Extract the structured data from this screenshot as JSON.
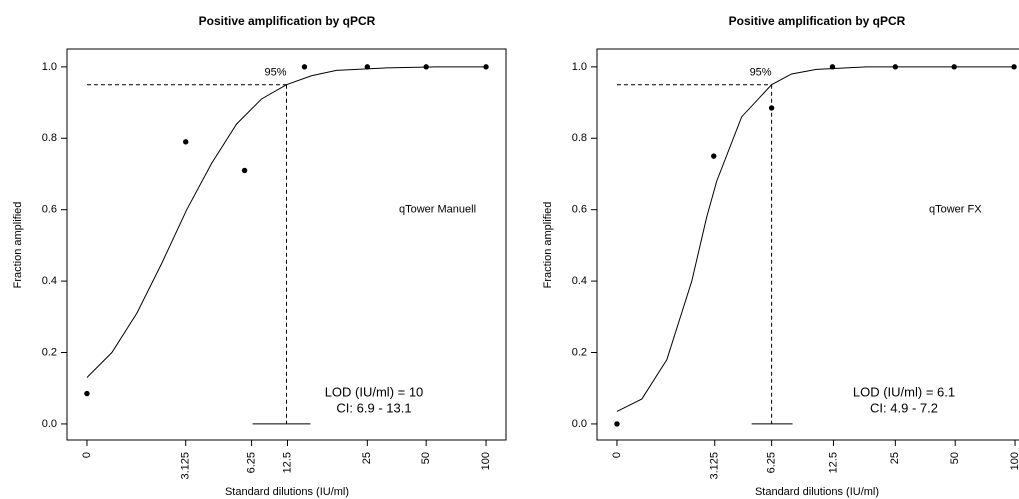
{
  "chart_data": [
    {
      "type": "scatter",
      "title": "Positive amplification by qPCR",
      "xlabel": "Standard dilutions (IU/ml)",
      "ylabel": "Fraction amplified",
      "x": [
        0,
        0.99,
        1.58,
        2.18,
        2.81,
        3.4,
        4.0
      ],
      "values": [
        0.085,
        0.79,
        0.71,
        1.0,
        1.0,
        1.0,
        1.0
      ],
      "color": "#000000",
      "xlim": [
        -0.2,
        4.2
      ],
      "ylim": [
        -0.045,
        1.05
      ],
      "xticks": [
        {
          "value": 0,
          "label": "0"
        },
        {
          "value": 0.99,
          "label": "3.125"
        },
        {
          "value": 1.65,
          "label": "6.25"
        },
        {
          "value": 2.01,
          "label": "12.5"
        },
        {
          "value": 2.81,
          "label": "25"
        },
        {
          "value": 3.4,
          "label": "50"
        },
        {
          "value": 4.0,
          "label": "100"
        }
      ],
      "yticks": [
        {
          "value": 0,
          "label": "0.0"
        },
        0.2,
        0.4,
        0.6,
        0.8,
        {
          "value": 1,
          "label": "1.0"
        }
      ],
      "curve": {
        "x": [
          0,
          0.25,
          0.5,
          0.75,
          1.0,
          1.25,
          1.5,
          1.75,
          2.0,
          2.25,
          2.5,
          3.0,
          3.5,
          4.0
        ],
        "values": [
          0.13,
          0.2,
          0.31,
          0.45,
          0.6,
          0.73,
          0.84,
          0.91,
          0.95,
          0.975,
          0.99,
          0.997,
          1.0,
          1.0
        ]
      },
      "threshold": 0.95,
      "threshold_label": "95%",
      "lod_x": 2.0,
      "ci": [
        1.66,
        2.24
      ],
      "lod_text": "LOD (IU/ml) = 10",
      "ci_text": "CI: 6.9 - 13.1",
      "instrument": "qTower Manuell"
    },
    {
      "type": "scatter",
      "title": "Positive amplification by qPCR",
      "xlabel": "Standard dilutions (IU/ml)",
      "ylabel": "Fraction amplified",
      "x": [
        0,
        0.97,
        1.55,
        2.16,
        2.79,
        3.38,
        3.98
      ],
      "values": [
        0.0,
        0.75,
        0.885,
        1.0,
        1.0,
        1.0,
        1.0
      ],
      "color": "#000000",
      "xlim": [
        -0.2,
        4.2
      ],
      "ylim": [
        -0.045,
        1.05
      ],
      "xticks": [
        {
          "value": 0,
          "label": "0"
        },
        {
          "value": 0.98,
          "label": "3.125"
        },
        {
          "value": 1.55,
          "label": "6.25"
        },
        {
          "value": 2.17,
          "label": "12.5"
        },
        {
          "value": 2.79,
          "label": "25"
        },
        {
          "value": 3.39,
          "label": "50"
        },
        {
          "value": 3.99,
          "label": "100"
        }
      ],
      "yticks": [
        {
          "value": 0,
          "label": "0.0"
        },
        0.2,
        0.4,
        0.6,
        0.8,
        {
          "value": 1,
          "label": "1.0"
        }
      ],
      "curve": {
        "x": [
          0,
          0.25,
          0.5,
          0.75,
          0.9,
          1.0,
          1.25,
          1.55,
          1.75,
          2.0,
          2.5,
          4.0
        ],
        "values": [
          0.035,
          0.07,
          0.18,
          0.4,
          0.58,
          0.68,
          0.86,
          0.95,
          0.98,
          0.993,
          1.0,
          1.0
        ]
      },
      "threshold": 0.95,
      "threshold_label": "95%",
      "lod_x": 1.55,
      "ci": [
        1.35,
        1.76
      ],
      "lod_text": "LOD (IU/ml) = 6.1",
      "ci_text": "CI: 4.9 - 7.2",
      "instrument": "qTower FX"
    }
  ]
}
